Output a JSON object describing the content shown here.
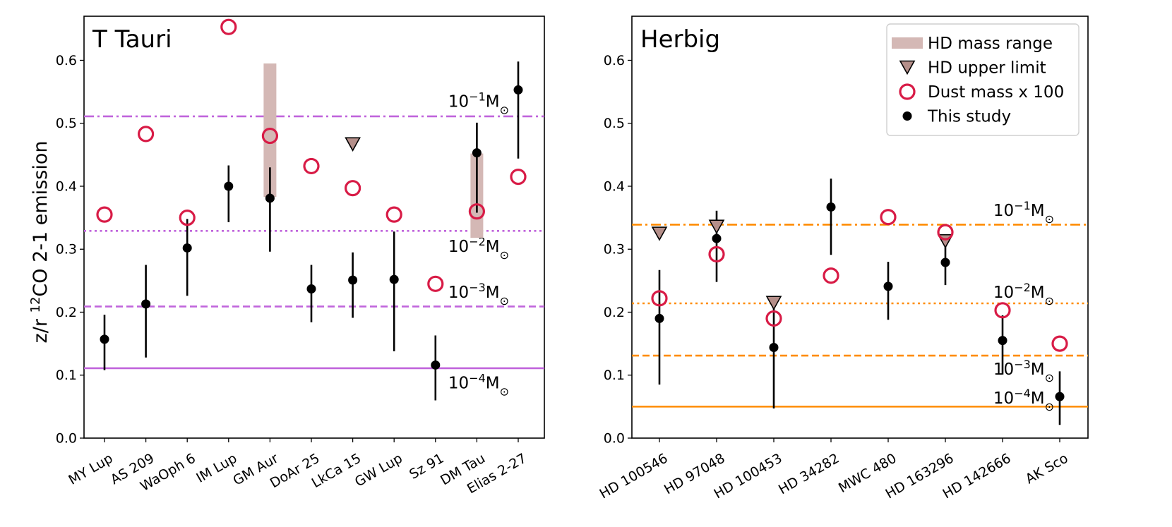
{
  "figure": {
    "ylabel_prefix": "z/r ",
    "ylabel_sup": "12",
    "ylabel_suffix": "CO 2-1 emission"
  },
  "legend": {
    "location": "upper right of right panel",
    "items": [
      {
        "label": "HD mass range",
        "marker": "bar",
        "color": "#d4b8b5"
      },
      {
        "label": "HD upper limit",
        "marker": "triangle-down",
        "color": "#b58f8a"
      },
      {
        "label": "Dust mass x 100",
        "marker": "open-circle",
        "color": "#d81b46"
      },
      {
        "label": "This study",
        "marker": "filled-circle",
        "color": "#000000"
      }
    ]
  },
  "colors": {
    "ttauri_lines": "#c065dc",
    "herbig_lines": "#ff8c00",
    "dust": "#d81b46",
    "hd_bar": "#d4b8b5",
    "hd_triangle": "#b58f8a",
    "point": "#000000"
  },
  "chart_data": [
    {
      "type": "scatter",
      "title": "T Tauri",
      "ylabel": "z/r 12CO 2-1 emission",
      "ylim": [
        0.0,
        0.67
      ],
      "yticks": [
        "0.0",
        "0.1",
        "0.2",
        "0.3",
        "0.4",
        "0.5",
        "0.6"
      ],
      "categories": [
        "MY Lup",
        "AS 209",
        "WaOph 6",
        "IM Lup",
        "GM Aur",
        "DoAr 25",
        "LkCa 15",
        "GW Lup",
        "Sz 91",
        "DM Tau",
        "Elias 2-27"
      ],
      "this_study": [
        {
          "y": 0.157,
          "lo": 0.108,
          "hi": 0.196
        },
        {
          "y": 0.213,
          "lo": 0.128,
          "hi": 0.275
        },
        {
          "y": 0.302,
          "lo": 0.226,
          "hi": 0.348
        },
        {
          "y": 0.4,
          "lo": 0.343,
          "hi": 0.433
        },
        {
          "y": 0.381,
          "lo": 0.296,
          "hi": 0.43
        },
        {
          "y": 0.237,
          "lo": 0.184,
          "hi": 0.275
        },
        {
          "y": 0.251,
          "lo": 0.191,
          "hi": 0.295
        },
        {
          "y": 0.252,
          "lo": 0.138,
          "hi": 0.328
        },
        {
          "y": 0.116,
          "lo": 0.06,
          "hi": 0.163
        },
        {
          "y": 0.453,
          "lo": 0.358,
          "hi": 0.501
        },
        {
          "y": 0.553,
          "lo": 0.444,
          "hi": 0.598
        }
      ],
      "dust_mass_x100": [
        0.355,
        0.483,
        0.35,
        0.653,
        0.48,
        0.432,
        0.397,
        0.355,
        0.245,
        0.36,
        0.415
      ],
      "hd_mass_range": [
        {
          "category": "GM Aur",
          "lo": 0.383,
          "hi": 0.595
        },
        {
          "category": "DM Tau",
          "lo": 0.318,
          "hi": 0.452
        }
      ],
      "hd_upper_limit": [
        {
          "category": "LkCa 15",
          "y": 0.468
        }
      ],
      "reference_lines": [
        {
          "y": 0.511,
          "style": "dashdot",
          "mantissa": "10",
          "exponent": "−1",
          "unit": "M",
          "sub": "⊙",
          "label_y": 0.535
        },
        {
          "y": 0.329,
          "style": "dotted",
          "mantissa": "10",
          "exponent": "−2",
          "unit": "M",
          "sub": "⊙",
          "label_y": 0.305
        },
        {
          "y": 0.209,
          "style": "dashed",
          "mantissa": "10",
          "exponent": "−3",
          "unit": "M",
          "sub": "⊙",
          "label_y": 0.232
        },
        {
          "y": 0.111,
          "style": "solid",
          "mantissa": "10",
          "exponent": "−4",
          "unit": "M",
          "sub": "⊙",
          "label_y": 0.088
        }
      ]
    },
    {
      "type": "scatter",
      "title": "Herbig",
      "ylabel": "",
      "ylim": [
        0.0,
        0.67
      ],
      "yticks": [
        "0.0",
        "0.1",
        "0.2",
        "0.3",
        "0.4",
        "0.5",
        "0.6"
      ],
      "categories": [
        "HD 100546",
        "HD 97048",
        "HD 100453",
        "HD 34282",
        "MWC 480",
        "HD 163296",
        "HD 142666",
        "AK Sco"
      ],
      "this_study": [
        {
          "y": 0.19,
          "lo": 0.085,
          "hi": 0.267
        },
        {
          "y": 0.317,
          "lo": 0.248,
          "hi": 0.361
        },
        {
          "y": 0.144,
          "lo": 0.047,
          "hi": 0.206
        },
        {
          "y": 0.367,
          "lo": 0.291,
          "hi": 0.412
        },
        {
          "y": 0.241,
          "lo": 0.188,
          "hi": 0.28
        },
        {
          "y": 0.279,
          "lo": 0.243,
          "hi": 0.314
        },
        {
          "y": 0.155,
          "lo": 0.101,
          "hi": 0.195
        },
        {
          "y": 0.066,
          "lo": 0.021,
          "hi": 0.106
        }
      ],
      "dust_mass_x100": [
        0.222,
        0.292,
        0.19,
        0.258,
        0.351,
        0.327,
        0.203,
        0.15
      ],
      "hd_mass_range": [],
      "hd_upper_limit": [
        {
          "category": "HD 100546",
          "y": 0.326
        },
        {
          "category": "HD 97048",
          "y": 0.337
        },
        {
          "category": "HD 100453",
          "y": 0.216
        },
        {
          "category": "HD 163296",
          "y": 0.314
        }
      ],
      "reference_lines": [
        {
          "y": 0.339,
          "style": "dashdot",
          "mantissa": "10",
          "exponent": "−1",
          "unit": "M",
          "sub": "⊙",
          "label_y": 0.362
        },
        {
          "y": 0.214,
          "style": "dotted",
          "mantissa": "10",
          "exponent": "−2",
          "unit": "M",
          "sub": "⊙",
          "label_y": 0.232
        },
        {
          "y": 0.131,
          "style": "dashed",
          "mantissa": "10",
          "exponent": "−3",
          "unit": "M",
          "sub": "⊙",
          "label_y": 0.11
        },
        {
          "y": 0.05,
          "style": "solid",
          "mantissa": "10",
          "exponent": "−4",
          "unit": "M",
          "sub": "⊙",
          "label_y": 0.064
        }
      ]
    }
  ]
}
